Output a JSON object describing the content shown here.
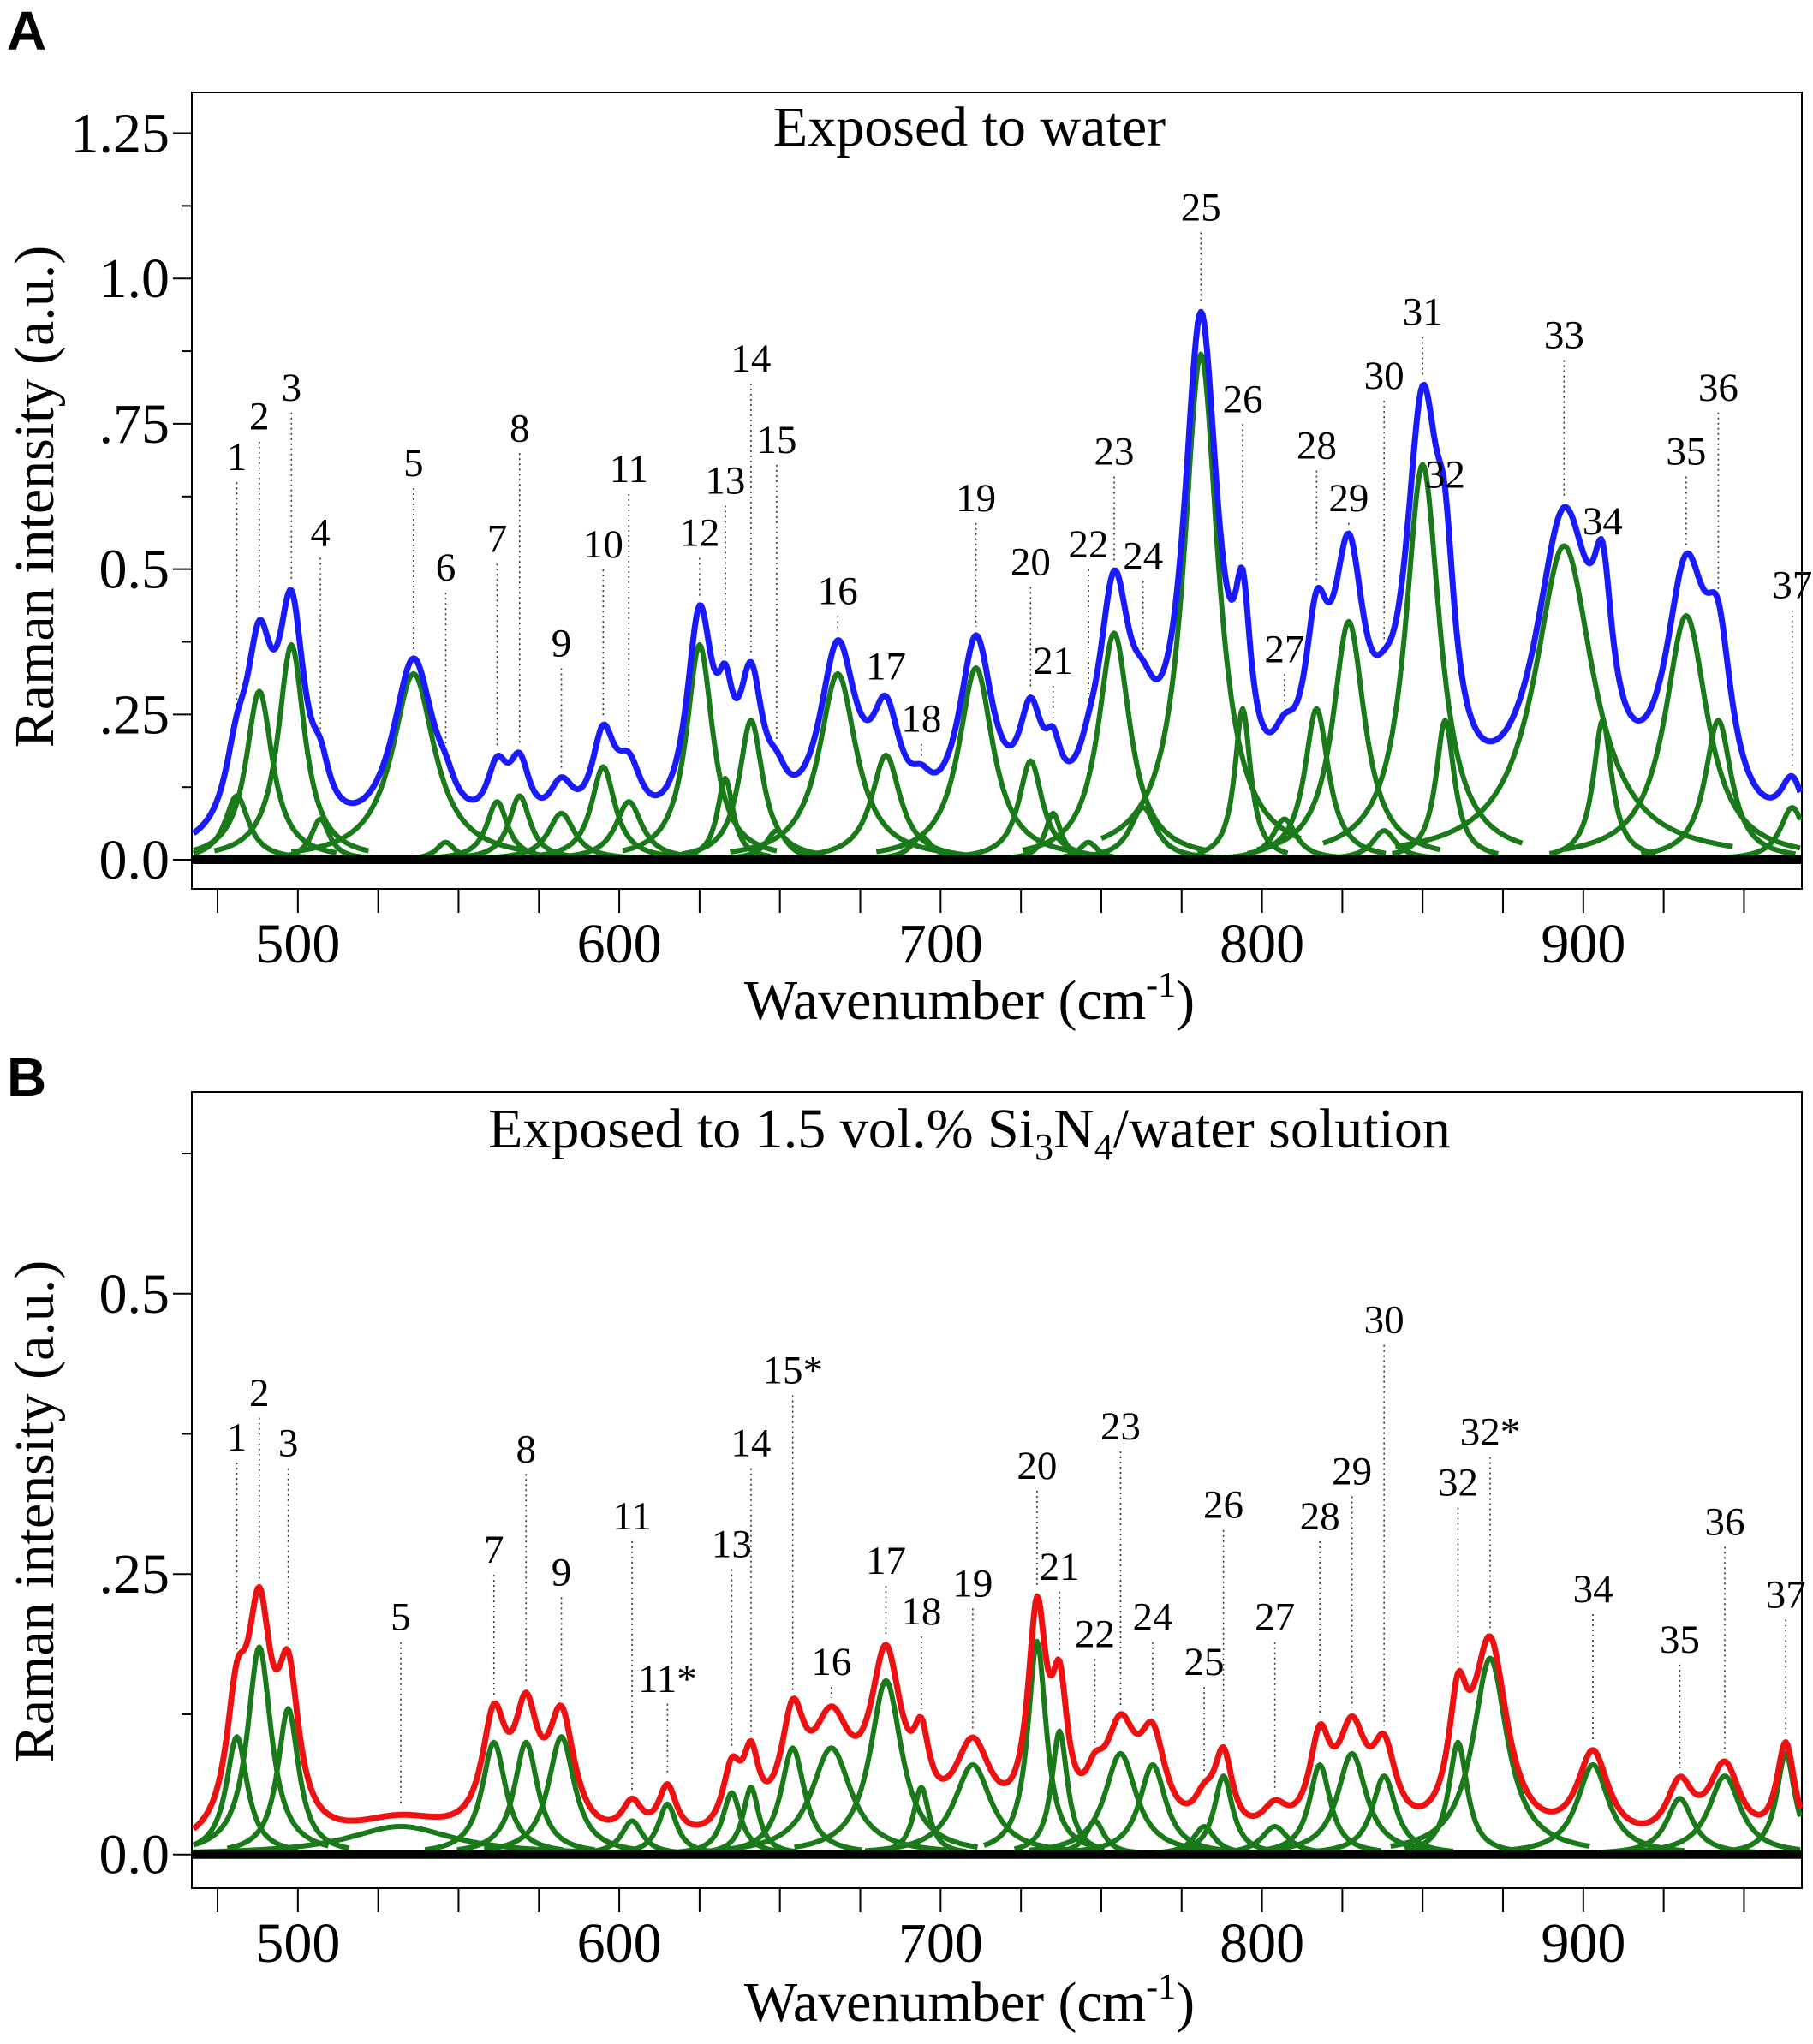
{
  "chart_data": [
    {
      "id": "A",
      "panel_label": "A",
      "type": "line",
      "title": "Exposed to water",
      "xlabel": "Wavenumber (cm",
      "xlabel_sup": "-1",
      "xlabel_end": ")",
      "ylabel": "Raman intensity (a.u.)",
      "xlim": [
        467,
        968
      ],
      "ylim": [
        -0.05,
        1.32
      ],
      "xticks": [
        500,
        600,
        700,
        800,
        900
      ],
      "xtick_labels": [
        "500",
        "600",
        "700",
        "800",
        "900"
      ],
      "yticks": [
        0.0,
        0.25,
        0.5,
        0.75,
        1.0,
        1.25
      ],
      "ytick_labels": [
        "0.0",
        ".25",
        "0.5",
        ".75",
        "1.0",
        "1.25"
      ],
      "envelope_color": "#1a1aff",
      "component_color": "#1a7a1a",
      "peaks": [
        {
          "label": "1",
          "center": 481,
          "height": 0.11,
          "fwhm": 9,
          "label_y": 0.67
        },
        {
          "label": "2",
          "center": 488,
          "height": 0.29,
          "fwhm": 10,
          "label_y": 0.74
        },
        {
          "label": "3",
          "center": 498,
          "height": 0.37,
          "fwhm": 10,
          "label_y": 0.79
        },
        {
          "label": "4",
          "center": 507,
          "height": 0.07,
          "fwhm": 7,
          "label_y": 0.54
        },
        {
          "label": "5",
          "center": 536,
          "height": 0.32,
          "fwhm": 16,
          "label_y": 0.66
        },
        {
          "label": "6",
          "center": 546,
          "height": 0.03,
          "fwhm": 7,
          "label_y": 0.48
        },
        {
          "label": "7",
          "center": 562,
          "height": 0.1,
          "fwhm": 8,
          "label_y": 0.53
        },
        {
          "label": "8",
          "center": 569,
          "height": 0.11,
          "fwhm": 8,
          "label_y": 0.72
        },
        {
          "label": "9",
          "center": 582,
          "height": 0.08,
          "fwhm": 10,
          "label_y": 0.35
        },
        {
          "label": "10",
          "center": 595,
          "height": 0.16,
          "fwhm": 9,
          "label_y": 0.52
        },
        {
          "label": "11",
          "center": 603,
          "height": 0.1,
          "fwhm": 10,
          "label_y": 0.65
        },
        {
          "label": "12",
          "center": 625,
          "height": 0.37,
          "fwhm": 10,
          "label_y": 0.54
        },
        {
          "label": "13",
          "center": 633,
          "height": 0.14,
          "fwhm": 6,
          "label_y": 0.63
        },
        {
          "label": "14",
          "center": 641,
          "height": 0.24,
          "fwhm": 9,
          "label_y": 0.84
        },
        {
          "label": "15",
          "center": 649,
          "height": 0.05,
          "fwhm": 8,
          "label_y": 0.7
        },
        {
          "label": "16",
          "center": 668,
          "height": 0.32,
          "fwhm": 14,
          "label_y": 0.44
        },
        {
          "label": "17",
          "center": 683,
          "height": 0.18,
          "fwhm": 11,
          "label_y": 0.31
        },
        {
          "label": "18",
          "center": 694,
          "height": 0.04,
          "fwhm": 8,
          "label_y": 0.22
        },
        {
          "label": "19",
          "center": 711,
          "height": 0.33,
          "fwhm": 13,
          "label_y": 0.6
        },
        {
          "label": "20",
          "center": 728,
          "height": 0.17,
          "fwhm": 9,
          "label_y": 0.49
        },
        {
          "label": "21",
          "center": 735,
          "height": 0.08,
          "fwhm": 6,
          "label_y": 0.32
        },
        {
          "label": "22",
          "center": 746,
          "height": 0.03,
          "fwhm": 7,
          "label_y": 0.52
        },
        {
          "label": "23",
          "center": 754,
          "height": 0.39,
          "fwhm": 12,
          "label_y": 0.68
        },
        {
          "label": "24",
          "center": 763,
          "height": 0.09,
          "fwhm": 10,
          "label_y": 0.5
        },
        {
          "label": "25",
          "center": 781,
          "height": 0.87,
          "fwhm": 13,
          "label_y": 1.1
        },
        {
          "label": "26",
          "center": 794,
          "height": 0.26,
          "fwhm": 6,
          "label_y": 0.77
        },
        {
          "label": "27",
          "center": 807,
          "height": 0.07,
          "fwhm": 9,
          "label_y": 0.34
        },
        {
          "label": "28",
          "center": 817,
          "height": 0.26,
          "fwhm": 9,
          "label_y": 0.69
        },
        {
          "label": "29",
          "center": 827,
          "height": 0.41,
          "fwhm": 12,
          "label_y": 0.6
        },
        {
          "label": "30",
          "center": 838,
          "height": 0.05,
          "fwhm": 9,
          "label_y": 0.81
        },
        {
          "label": "31",
          "center": 850,
          "height": 0.68,
          "fwhm": 13,
          "label_y": 0.92
        },
        {
          "label": "32",
          "center": 857,
          "height": 0.24,
          "fwhm": 7,
          "label_y": 0.64
        },
        {
          "label": "33",
          "center": 894,
          "height": 0.54,
          "fwhm": 22,
          "label_y": 0.88
        },
        {
          "label": "34",
          "center": 906,
          "height": 0.24,
          "fwhm": 7,
          "label_y": 0.56
        },
        {
          "label": "35",
          "center": 932,
          "height": 0.42,
          "fwhm": 16,
          "label_y": 0.68
        },
        {
          "label": "36",
          "center": 942,
          "height": 0.24,
          "fwhm": 10,
          "label_y": 0.79
        },
        {
          "label": "37",
          "center": 965,
          "height": 0.09,
          "fwhm": 9,
          "label_y": 0.45
        }
      ]
    },
    {
      "id": "B",
      "panel_label": "B",
      "type": "line",
      "title_parts": [
        "Exposed to 1.5 vol.% Si",
        "3",
        "N",
        "4",
        "/water solution"
      ],
      "xlabel": "Wavenumber (cm",
      "xlabel_sup": "-1",
      "xlabel_end": ")",
      "ylabel": "Raman intensity (a.u.)",
      "xlim": [
        467,
        968
      ],
      "ylim": [
        -0.03,
        0.68
      ],
      "xticks": [
        500,
        600,
        700,
        800,
        900
      ],
      "xtick_labels": [
        "500",
        "600",
        "700",
        "800",
        "900"
      ],
      "yticks": [
        0.0,
        0.25,
        0.5
      ],
      "ytick_labels": [
        "0.0",
        ".25",
        "0.5"
      ],
      "envelope_color": "#ee1111",
      "component_color": "#1a7a1a",
      "peaks": [
        {
          "label": "1",
          "center": 481,
          "height": 0.105,
          "fwhm": 8,
          "label_y": 0.36
        },
        {
          "label": "2",
          "center": 488,
          "height": 0.185,
          "fwhm": 9,
          "label_y": 0.4
        },
        {
          "label": "3",
          "center": 497,
          "height": 0.13,
          "fwhm": 8,
          "label_y": 0.355
        },
        {
          "label": "5",
          "center": 532,
          "height": 0.025,
          "fwhm": 40,
          "label_y": 0.2
        },
        {
          "label": "7",
          "center": 561,
          "height": 0.1,
          "fwhm": 9,
          "label_y": 0.26
        },
        {
          "label": "8",
          "center": 571,
          "height": 0.1,
          "fwhm": 9,
          "label_y": 0.35
        },
        {
          "label": "9",
          "center": 582,
          "height": 0.105,
          "fwhm": 10,
          "label_y": 0.24
        },
        {
          "label": "11",
          "center": 604,
          "height": 0.03,
          "fwhm": 8,
          "label_y": 0.29
        },
        {
          "label": "11*",
          "center": 615,
          "height": 0.045,
          "fwhm": 7,
          "label_y": 0.145
        },
        {
          "label": "13",
          "center": 635,
          "height": 0.055,
          "fwhm": 7,
          "label_y": 0.265
        },
        {
          "label": "14",
          "center": 641,
          "height": 0.06,
          "fwhm": 6,
          "label_y": 0.355
        },
        {
          "label": "15*",
          "center": 654,
          "height": 0.095,
          "fwhm": 9,
          "label_y": 0.42
        },
        {
          "label": "16",
          "center": 666,
          "height": 0.095,
          "fwhm": 15,
          "label_y": 0.16
        },
        {
          "label": "17",
          "center": 683,
          "height": 0.155,
          "fwhm": 12,
          "label_y": 0.25
        },
        {
          "label": "18",
          "center": 694,
          "height": 0.06,
          "fwhm": 6,
          "label_y": 0.205
        },
        {
          "label": "19",
          "center": 710,
          "height": 0.08,
          "fwhm": 14,
          "label_y": 0.23
        },
        {
          "label": "20",
          "center": 730,
          "height": 0.19,
          "fwhm": 7,
          "label_y": 0.335
        },
        {
          "label": "21",
          "center": 737,
          "height": 0.11,
          "fwhm": 6,
          "label_y": 0.245
        },
        {
          "label": "22",
          "center": 748,
          "height": 0.03,
          "fwhm": 7,
          "label_y": 0.185
        },
        {
          "label": "23",
          "center": 756,
          "height": 0.09,
          "fwhm": 12,
          "label_y": 0.37
        },
        {
          "label": "24",
          "center": 766,
          "height": 0.08,
          "fwhm": 10,
          "label_y": 0.2
        },
        {
          "label": "25",
          "center": 782,
          "height": 0.025,
          "fwhm": 8,
          "label_y": 0.16
        },
        {
          "label": "26",
          "center": 788,
          "height": 0.07,
          "fwhm": 7,
          "label_y": 0.3
        },
        {
          "label": "27",
          "center": 804,
          "height": 0.025,
          "fwhm": 10,
          "label_y": 0.2
        },
        {
          "label": "28",
          "center": 818,
          "height": 0.08,
          "fwhm": 8,
          "label_y": 0.29
        },
        {
          "label": "29",
          "center": 828,
          "height": 0.09,
          "fwhm": 11,
          "label_y": 0.33
        },
        {
          "label": "30",
          "center": 838,
          "height": 0.07,
          "fwhm": 9,
          "label_y": 0.465
        },
        {
          "label": "32",
          "center": 861,
          "height": 0.1,
          "fwhm": 7,
          "label_y": 0.32
        },
        {
          "label": "32*",
          "center": 871,
          "height": 0.175,
          "fwhm": 13,
          "label_y": 0.365
        },
        {
          "label": "34",
          "center": 903,
          "height": 0.08,
          "fwhm": 12,
          "label_y": 0.225
        },
        {
          "label": "35",
          "center": 930,
          "height": 0.05,
          "fwhm": 10,
          "label_y": 0.18
        },
        {
          "label": "36",
          "center": 944,
          "height": 0.07,
          "fwhm": 12,
          "label_y": 0.285
        },
        {
          "label": "37",
          "center": 963,
          "height": 0.09,
          "fwhm": 7,
          "label_y": 0.22
        }
      ]
    }
  ]
}
